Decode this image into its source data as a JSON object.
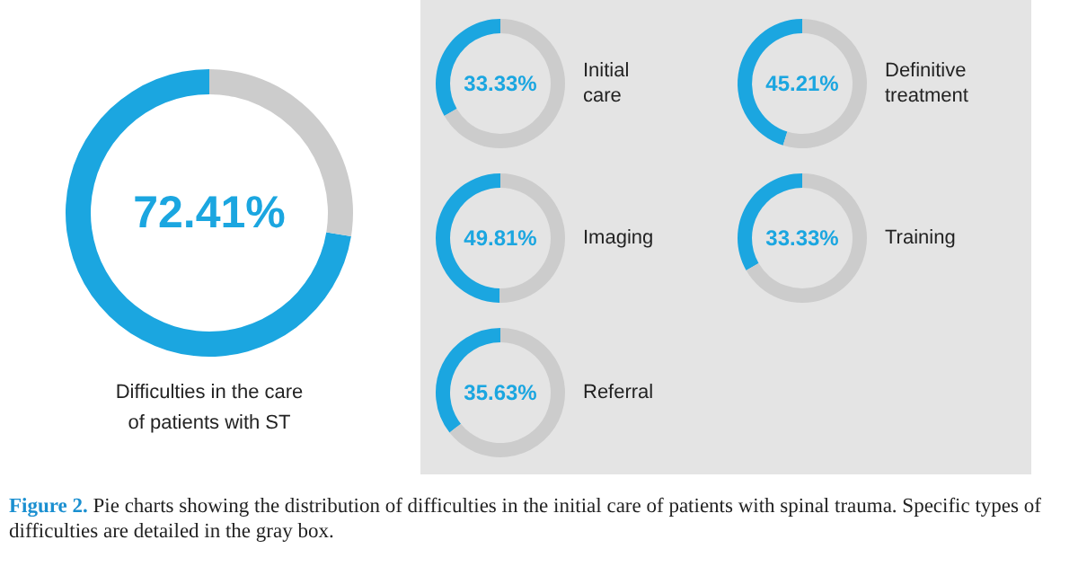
{
  "chart_data": [
    {
      "type": "donut",
      "title": "Difficulties in the care of patients with ST",
      "categories": [
        null,
        null
      ],
      "values": [
        72.41,
        27.59
      ],
      "colors": [
        "#1ba6e0",
        "#cccccc"
      ],
      "annotations": [
        "72.41%",
        "Figure 2. Pie charts showing the distribution of difficulties in the initial care of patients with spinal trauma. Specific types of difficulties are detailed in the gray box."
      ]
    },
    {
      "type": "donut",
      "title": "Initial care",
      "categories": [
        null,
        null
      ],
      "values": [
        33.33,
        66.67
      ],
      "colors": [
        "#1ba6e0",
        "#cccccc"
      ],
      "annotations": [
        "33.33%"
      ]
    },
    {
      "type": "donut",
      "title": "Definitive treatment",
      "categories": [
        null,
        null
      ],
      "values": [
        45.21,
        54.79
      ],
      "colors": [
        "#1ba6e0",
        "#cccccc"
      ],
      "annotations": [
        "45.21%"
      ]
    },
    {
      "type": "donut",
      "title": "Imaging",
      "categories": [
        null,
        null
      ],
      "values": [
        49.81,
        50.19
      ],
      "colors": [
        "#1ba6e0",
        "#cccccc"
      ],
      "annotations": [
        "49.81%"
      ]
    },
    {
      "type": "donut",
      "title": "Training",
      "categories": [
        null,
        null
      ],
      "values": [
        33.33,
        66.67
      ],
      "colors": [
        "#1ba6e0",
        "#cccccc"
      ],
      "annotations": [
        "33.33%"
      ]
    },
    {
      "type": "donut",
      "title": "Referral",
      "categories": [
        null,
        null
      ],
      "values": [
        35.63,
        64.37
      ],
      "colors": [
        "#1ba6e0",
        "#cccccc"
      ],
      "annotations": [
        "35.63%"
      ]
    }
  ]
}
